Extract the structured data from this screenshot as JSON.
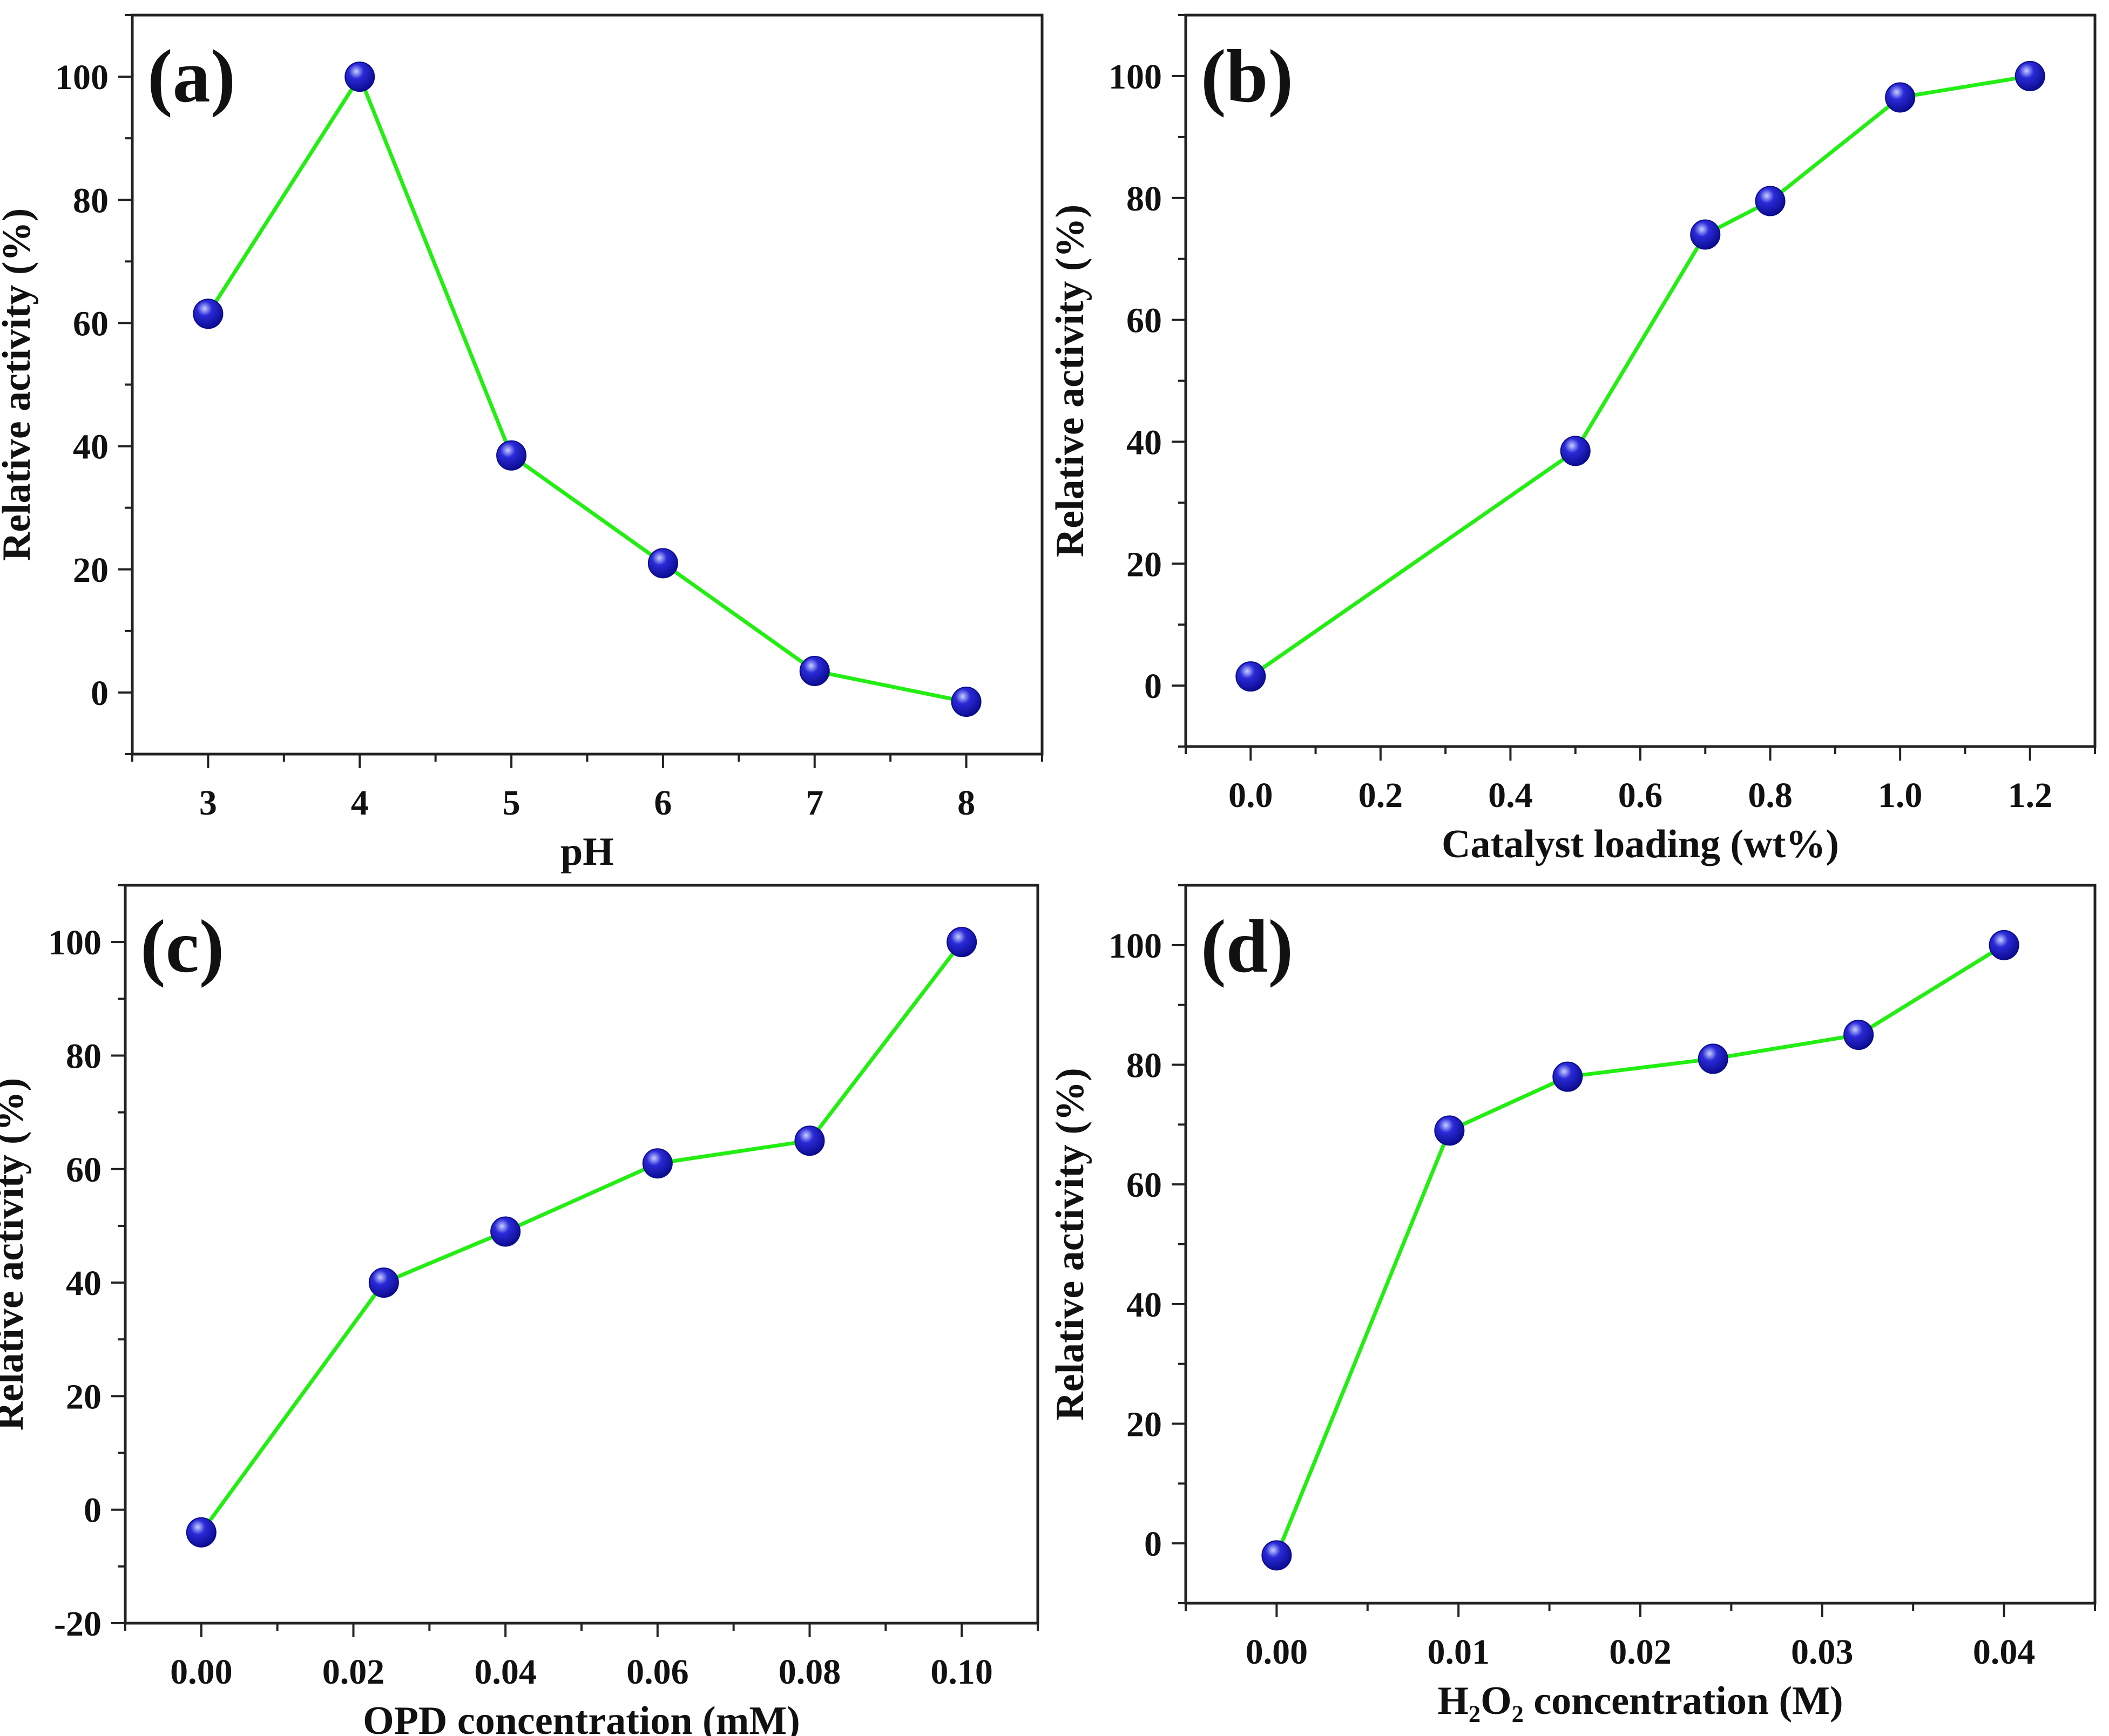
{
  "colors": {
    "line": "#22ee11",
    "marker_dark": "#0a0a8c",
    "marker_mid": "#2a2ad8",
    "marker_light": "#c8d0ff",
    "axis": "#222222"
  },
  "chart_data": [
    {
      "id": "a",
      "type": "line",
      "panel_label": "(a)",
      "xlabel": "pH",
      "ylabel": "Relative activity (%)",
      "x": [
        3,
        4,
        5,
        6,
        7,
        8
      ],
      "series": [
        {
          "name": "Relative activity",
          "values": [
            61.5,
            100,
            38.5,
            21,
            3.5,
            -1.5
          ]
        }
      ],
      "xlim": [
        2.5,
        8.5
      ],
      "ylim": [
        -10,
        110
      ],
      "xticks": [
        3,
        4,
        5,
        6,
        7,
        8
      ],
      "xtick_labels": [
        "3",
        "4",
        "5",
        "6",
        "7",
        "8"
      ],
      "yticks": [
        0,
        20,
        40,
        60,
        80,
        100
      ],
      "ytick_labels": [
        "0",
        "20",
        "40",
        "60",
        "80",
        "100"
      ]
    },
    {
      "id": "b",
      "type": "line",
      "panel_label": "(b)",
      "xlabel": "Catalyst loading (wt%)",
      "ylabel": "Relative activity (%)",
      "x": [
        0.0,
        0.5,
        0.7,
        0.8,
        1.0,
        1.2
      ],
      "series": [
        {
          "name": "Relative activity",
          "values": [
            1.5,
            38.5,
            74,
            79.5,
            96.5,
            100
          ]
        }
      ],
      "xlim": [
        -0.1,
        1.3
      ],
      "ylim": [
        -10,
        110
      ],
      "xticks": [
        0.0,
        0.2,
        0.4,
        0.6,
        0.8,
        1.0,
        1.2
      ],
      "xtick_labels": [
        "0.0",
        "0.2",
        "0.4",
        "0.6",
        "0.8",
        "1.0",
        "1.2"
      ],
      "yticks": [
        0,
        20,
        40,
        60,
        80,
        100
      ],
      "ytick_labels": [
        "0",
        "20",
        "40",
        "60",
        "80",
        "100"
      ]
    },
    {
      "id": "c",
      "type": "line",
      "panel_label": "(c)",
      "xlabel": "OPD concentration (mM)",
      "ylabel": "Relative activity (%)",
      "x": [
        0.0,
        0.024,
        0.04,
        0.06,
        0.08,
        0.1
      ],
      "series": [
        {
          "name": "Relative activity",
          "values": [
            -4,
            40,
            49,
            61,
            65,
            100
          ]
        }
      ],
      "xlim": [
        -0.01,
        0.11
      ],
      "ylim": [
        -20,
        110
      ],
      "xticks": [
        0.0,
        0.02,
        0.04,
        0.06,
        0.08,
        0.1
      ],
      "xtick_labels": [
        "0.00",
        "0.02",
        "0.04",
        "0.06",
        "0.08",
        "0.10"
      ],
      "yticks": [
        -20,
        0,
        20,
        40,
        60,
        80,
        100
      ],
      "ytick_labels": [
        "-20",
        "0",
        "20",
        "40",
        "60",
        "80",
        "100"
      ]
    },
    {
      "id": "d",
      "type": "line",
      "panel_label": "(d)",
      "xlabel": "H₂O₂ concentration (M)",
      "ylabel": "Relative activity (%)",
      "x": [
        0.0,
        0.0095,
        0.016,
        0.024,
        0.032,
        0.04
      ],
      "series": [
        {
          "name": "Relative activity",
          "values": [
            -2,
            69,
            78,
            81,
            85,
            100
          ]
        }
      ],
      "xlim": [
        -0.005,
        0.045
      ],
      "ylim": [
        -10,
        110
      ],
      "xticks": [
        0.0,
        0.01,
        0.02,
        0.03,
        0.04
      ],
      "xtick_labels": [
        "0.00",
        "0.01",
        "0.02",
        "0.03",
        "0.04"
      ],
      "yticks": [
        0,
        20,
        40,
        60,
        80,
        100
      ],
      "ytick_labels": [
        "0",
        "20",
        "40",
        "60",
        "80",
        "100"
      ]
    }
  ]
}
